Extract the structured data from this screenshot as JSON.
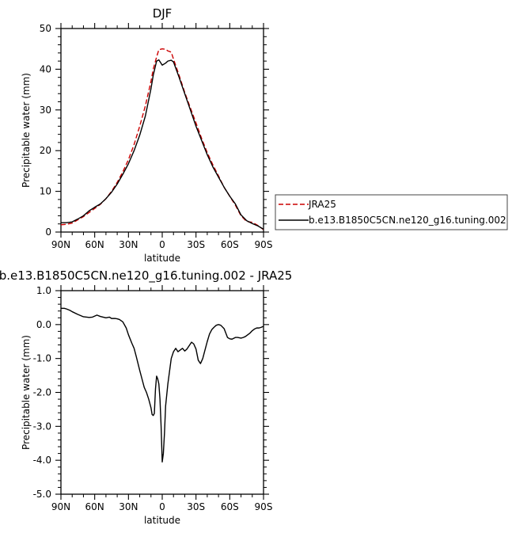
{
  "chart_data": [
    {
      "type": "line",
      "title": "DJF",
      "xlabel": "latitude",
      "ylabel": "Precipitable water (mm)",
      "xlim": [
        90,
        -90
      ],
      "ylim": [
        0,
        50
      ],
      "x_ticks": [
        90,
        60,
        30,
        0,
        -30,
        -60,
        -90
      ],
      "x_tick_labels": [
        "90N",
        "60N",
        "30N",
        "0",
        "30S",
        "60S",
        "90S"
      ],
      "y_ticks": [
        0,
        10,
        20,
        30,
        40,
        50
      ],
      "y_tick_labels": [
        "0",
        "10",
        "20",
        "30",
        "40",
        "50"
      ],
      "legend": {
        "placement": "right",
        "entries": [
          "JRA25",
          "b.e13.B1850C5CN.ne120_g16.tuning.002"
        ]
      },
      "series": [
        {
          "name": "JRA25",
          "color": "#cc0000",
          "dash": "dashed",
          "x": [
            90,
            85,
            80,
            75,
            70,
            65,
            60,
            55,
            50,
            45,
            40,
            35,
            30,
            25,
            20,
            15,
            10,
            8,
            5,
            3,
            0,
            -3,
            -5,
            -8,
            -10,
            -15,
            -20,
            -25,
            -30,
            -35,
            -40,
            -45,
            -50,
            -55,
            -60,
            -65,
            -70,
            -75,
            -80,
            -85,
            -90
          ],
          "values": [
            1.8,
            1.9,
            2.2,
            3.0,
            3.8,
            4.8,
            5.8,
            6.8,
            8.2,
            10.0,
            12.2,
            14.8,
            17.8,
            21.5,
            26.0,
            31.0,
            37.0,
            40.0,
            43.0,
            44.8,
            45.0,
            44.9,
            44.5,
            44.2,
            42.5,
            38.5,
            34.3,
            30.5,
            26.8,
            23.0,
            19.5,
            16.5,
            13.8,
            11.0,
            8.8,
            6.6,
            4.0,
            2.6,
            2.4,
            1.6,
            0.6
          ]
        },
        {
          "name": "b.e13.B1850C5CN.ne120_g16.tuning.002",
          "color": "#000000",
          "dash": "solid",
          "x": [
            90,
            85,
            80,
            75,
            70,
            65,
            60,
            55,
            50,
            45,
            40,
            35,
            30,
            25,
            20,
            15,
            10,
            8,
            5,
            3,
            0,
            -3,
            -5,
            -8,
            -10,
            -15,
            -20,
            -25,
            -30,
            -35,
            -40,
            -45,
            -50,
            -55,
            -60,
            -65,
            -70,
            -75,
            -80,
            -85,
            -90
          ],
          "values": [
            2.3,
            2.3,
            2.5,
            3.2,
            4.0,
            5.2,
            6.1,
            6.9,
            8.2,
            9.8,
            11.8,
            14.2,
            16.8,
            20.0,
            23.8,
            28.5,
            35.2,
            38.5,
            42.0,
            42.3,
            41.0,
            41.5,
            42.0,
            42.2,
            41.8,
            38.0,
            34.0,
            30.0,
            26.0,
            22.5,
            19.0,
            16.0,
            13.5,
            11.0,
            8.8,
            6.9,
            4.2,
            2.8,
            2.1,
            1.5,
            0.7
          ]
        }
      ]
    },
    {
      "type": "line",
      "title": "b.e13.B1850C5CN.ne120_g16.tuning.002 - JRA25",
      "xlabel": "latitude",
      "ylabel": "Precipitable water (mm)",
      "xlim": [
        90,
        -90
      ],
      "ylim": [
        -5,
        1
      ],
      "x_ticks": [
        90,
        60,
        30,
        0,
        -30,
        -60,
        -90
      ],
      "x_tick_labels": [
        "90N",
        "60N",
        "30N",
        "0",
        "30S",
        "60S",
        "90S"
      ],
      "y_ticks": [
        1,
        0,
        -1,
        -2,
        -3,
        -4,
        -5
      ],
      "y_tick_labels": [
        "1.0",
        "0.0",
        "-1.0",
        "-2.0",
        "-3.0",
        "-4.0",
        "-5.0"
      ],
      "series": [
        {
          "color": "#000000",
          "dash": "solid",
          "x": [
            90,
            87,
            85,
            82,
            80,
            75,
            70,
            67,
            65,
            62,
            60,
            58,
            55,
            50,
            47,
            45,
            42,
            40,
            38,
            35,
            32,
            30,
            27,
            25,
            23,
            20,
            18,
            16,
            14,
            12,
            10,
            9,
            8,
            7,
            6,
            5,
            4,
            3,
            2,
            1,
            0,
            -1,
            -2,
            -3,
            -5,
            -7,
            -8,
            -10,
            -12,
            -14,
            -16,
            -18,
            -20,
            -22,
            -24,
            -26,
            -28,
            -30,
            -32,
            -34,
            -36,
            -38,
            -40,
            -42,
            -44,
            -46,
            -48,
            -50,
            -52,
            -55,
            -58,
            -60,
            -62,
            -65,
            -67,
            -70,
            -72,
            -74,
            -76,
            -78,
            -80,
            -82,
            -84,
            -86,
            -88,
            -90
          ],
          "values": [
            0.48,
            0.48,
            0.46,
            0.42,
            0.38,
            0.3,
            0.23,
            0.22,
            0.21,
            0.22,
            0.25,
            0.28,
            0.24,
            0.2,
            0.22,
            0.18,
            0.18,
            0.17,
            0.15,
            0.08,
            -0.1,
            -0.3,
            -0.55,
            -0.7,
            -0.95,
            -1.35,
            -1.6,
            -1.85,
            -2.0,
            -2.2,
            -2.45,
            -2.65,
            -2.68,
            -2.62,
            -1.9,
            -1.52,
            -1.6,
            -1.75,
            -2.2,
            -3.0,
            -4.05,
            -3.8,
            -3.2,
            -2.4,
            -1.75,
            -1.25,
            -1.0,
            -0.8,
            -0.7,
            -0.8,
            -0.75,
            -0.7,
            -0.78,
            -0.72,
            -0.62,
            -0.52,
            -0.57,
            -0.72,
            -1.05,
            -1.15,
            -1.0,
            -0.75,
            -0.5,
            -0.28,
            -0.15,
            -0.08,
            -0.02,
            0.0,
            -0.02,
            -0.12,
            -0.38,
            -0.42,
            -0.43,
            -0.38,
            -0.38,
            -0.4,
            -0.38,
            -0.35,
            -0.3,
            -0.25,
            -0.18,
            -0.13,
            -0.1,
            -0.1,
            -0.08,
            -0.05
          ]
        }
      ]
    }
  ]
}
